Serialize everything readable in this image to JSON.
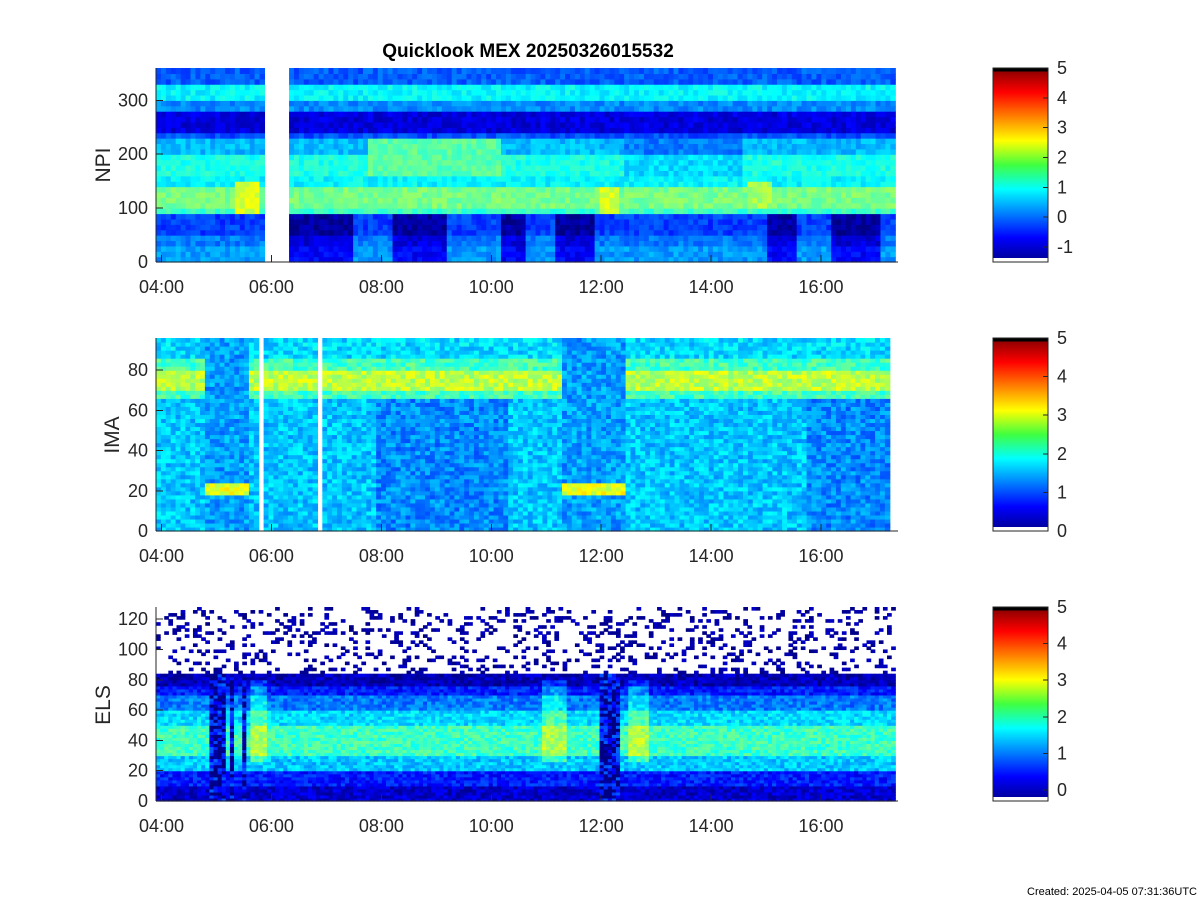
{
  "title": "Quicklook MEX 20250326015532",
  "footer": "Created: 2025-04-05 07:31:36UTC",
  "chart_data": [
    {
      "type": "heatmap",
      "ylabel": "NPI",
      "x_ticks": [
        "04:00",
        "06:00",
        "08:00",
        "10:00",
        "12:00",
        "14:00",
        "16:00"
      ],
      "x_tick_hours": [
        4,
        6,
        8,
        10,
        12,
        14,
        16
      ],
      "x_range_hours": [
        3.9,
        17.4
      ],
      "data_end_hour": 17.35,
      "y_ticks": [
        0,
        100,
        200,
        300
      ],
      "ylim": [
        0,
        360
      ],
      "colorbar": {
        "ticks": [
          -1,
          0,
          1,
          2,
          3,
          4,
          5
        ],
        "range": [
          -1.5,
          5
        ]
      },
      "gaps_hours": [
        [
          5.84,
          6.3
        ]
      ],
      "bands": [
        {
          "y": [
            0,
            30
          ],
          "level": 0.3
        },
        {
          "y": [
            30,
            55
          ],
          "level": 0.1
        },
        {
          "y": [
            55,
            90
          ],
          "level": -0.3
        },
        {
          "y": [
            90,
            105
          ],
          "level": 1.3
        },
        {
          "y": [
            105,
            145
          ],
          "level": 1.7
        },
        {
          "y": [
            145,
            165
          ],
          "level": 0.9
        },
        {
          "y": [
            165,
            205
          ],
          "level": 1.1
        },
        {
          "y": [
            205,
            230
          ],
          "level": 0.5
        },
        {
          "y": [
            230,
            245
          ],
          "level": -0.2
        },
        {
          "y": [
            245,
            285
          ],
          "level": -0.9
        },
        {
          "y": [
            285,
            305
          ],
          "level": 0.2
        },
        {
          "y": [
            305,
            330
          ],
          "level": 0.9
        },
        {
          "y": [
            330,
            360
          ],
          "level": -0.1
        }
      ]
    },
    {
      "type": "heatmap",
      "ylabel": "IMA",
      "x_ticks": [
        "04:00",
        "06:00",
        "08:00",
        "10:00",
        "12:00",
        "14:00",
        "16:00"
      ],
      "x_tick_hours": [
        4,
        6,
        8,
        10,
        12,
        14,
        16
      ],
      "x_range_hours": [
        3.9,
        17.4
      ],
      "data_end_hour": 17.25,
      "y_ticks": [
        0,
        20,
        40,
        60,
        80
      ],
      "ylim": [
        0,
        96
      ],
      "colorbar": {
        "ticks": [
          0,
          1,
          2,
          3,
          4,
          5
        ],
        "range": [
          0,
          5
        ]
      },
      "gaps_hours": [
        [
          5.75,
          5.83
        ],
        [
          6.85,
          6.93
        ]
      ],
      "bands": [
        {
          "y": [
            0,
            66
          ],
          "level": 1.6
        },
        {
          "y": [
            66,
            70
          ],
          "level": 2.2
        },
        {
          "y": [
            70,
            80
          ],
          "level": 2.8
        },
        {
          "y": [
            80,
            86
          ],
          "level": 2.2
        },
        {
          "y": [
            86,
            96
          ],
          "level": 1.7
        }
      ]
    },
    {
      "type": "heatmap",
      "ylabel": "ELS",
      "x_ticks": [
        "04:00",
        "06:00",
        "08:00",
        "10:00",
        "12:00",
        "14:00",
        "16:00"
      ],
      "x_tick_hours": [
        4,
        6,
        8,
        10,
        12,
        14,
        16
      ],
      "x_range_hours": [
        3.9,
        17.4
      ],
      "data_end_hour": 17.35,
      "y_ticks": [
        0,
        20,
        40,
        60,
        80,
        100,
        120
      ],
      "ylim": [
        0,
        128
      ],
      "colorbar": {
        "ticks": [
          0,
          1,
          2,
          3,
          4,
          5
        ],
        "range": [
          -0.3,
          5
        ]
      },
      "gaps_hours": [],
      "bands": [
        {
          "y": [
            0,
            10
          ],
          "level": 0.1
        },
        {
          "y": [
            10,
            20
          ],
          "level": 0.5
        },
        {
          "y": [
            20,
            30
          ],
          "level": 1.4
        },
        {
          "y": [
            30,
            50
          ],
          "level": 2.0
        },
        {
          "y": [
            50,
            60
          ],
          "level": 1.5
        },
        {
          "y": [
            60,
            70
          ],
          "level": 1.0
        },
        {
          "y": [
            70,
            76
          ],
          "level": 0.5
        },
        {
          "y": [
            76,
            84
          ],
          "level": 0.0
        },
        {
          "y": [
            84,
            128
          ],
          "level": -0.3
        }
      ]
    }
  ]
}
